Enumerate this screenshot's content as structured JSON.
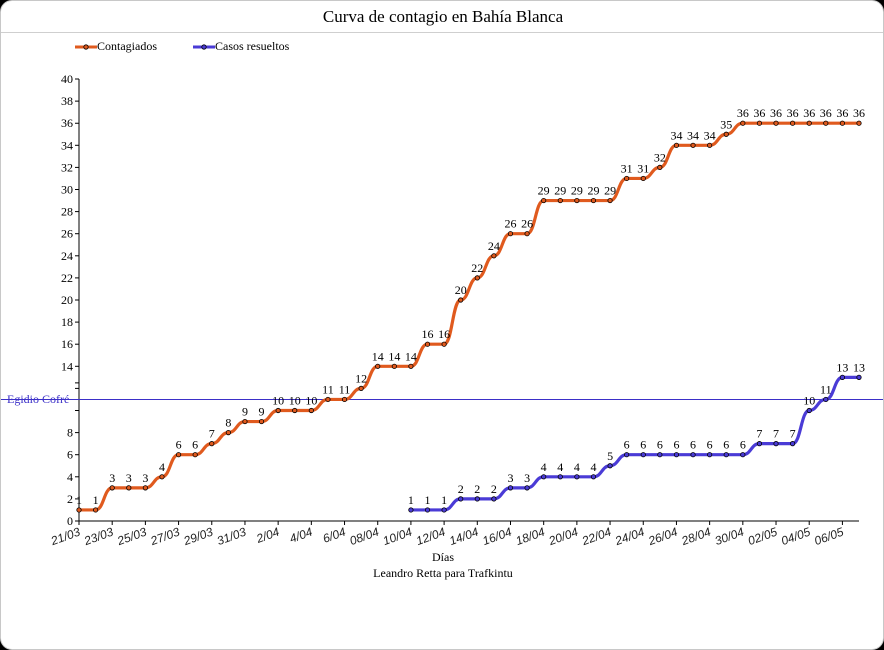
{
  "chart_data": {
    "type": "line",
    "title": "Curva de contagio en Bahía Blanca",
    "xlabel": "Días",
    "credit": "Leandro Retta para Trafkintu",
    "ylim": [
      0,
      40
    ],
    "yticks": [
      "0",
      "2",
      "4",
      "6",
      "8",
      "",
      "",
      "",
      "14",
      "16",
      "18",
      "20",
      "22",
      "24",
      "26",
      "28",
      "30",
      "32",
      "34",
      "36",
      "38",
      "40"
    ],
    "yticks_note_values": [
      0,
      2,
      4,
      6,
      8,
      10,
      12,
      12.5,
      14,
      16,
      18,
      20,
      22,
      24,
      26,
      28,
      30,
      32,
      34,
      36,
      38,
      40
    ],
    "xtick_labels": [
      "21/03",
      "23/03",
      "25/03",
      "27/03",
      "29/03",
      "31/03",
      "2/04",
      "4/04",
      "6/04",
      "08/04",
      "10/04",
      "12/04",
      "14/04",
      "16/04",
      "18/04",
      "20/04",
      "22/04",
      "24/04",
      "26/04",
      "28/04",
      "30/04",
      "02/05",
      "04/05",
      "06/05"
    ],
    "grid": false,
    "legend_position": "top-left",
    "reference_line": {
      "label": "Egidio Cofré",
      "value": 11,
      "color": "#3b2fc8"
    },
    "series": [
      {
        "name": "Contagiados",
        "color": "#e05a1e",
        "start_index": 0,
        "values": [
          1,
          1,
          3,
          3,
          3,
          4,
          6,
          6,
          7,
          8,
          9,
          9,
          10,
          10,
          10,
          11,
          11,
          12,
          14,
          14,
          14,
          16,
          16,
          20,
          22,
          24,
          26,
          26,
          29,
          29,
          29,
          29,
          29,
          31,
          31,
          32,
          34,
          34,
          34,
          35,
          36,
          36,
          36,
          36,
          36,
          36,
          36,
          36
        ]
      },
      {
        "name": "Casos resueltos",
        "color": "#4a3bd6",
        "start_index": 20,
        "values": [
          1,
          1,
          1,
          2,
          2,
          2,
          3,
          3,
          4,
          4,
          4,
          4,
          5,
          6,
          6,
          6,
          6,
          6,
          6,
          6,
          6,
          7,
          7,
          7,
          10,
          11,
          13,
          13
        ]
      }
    ]
  }
}
